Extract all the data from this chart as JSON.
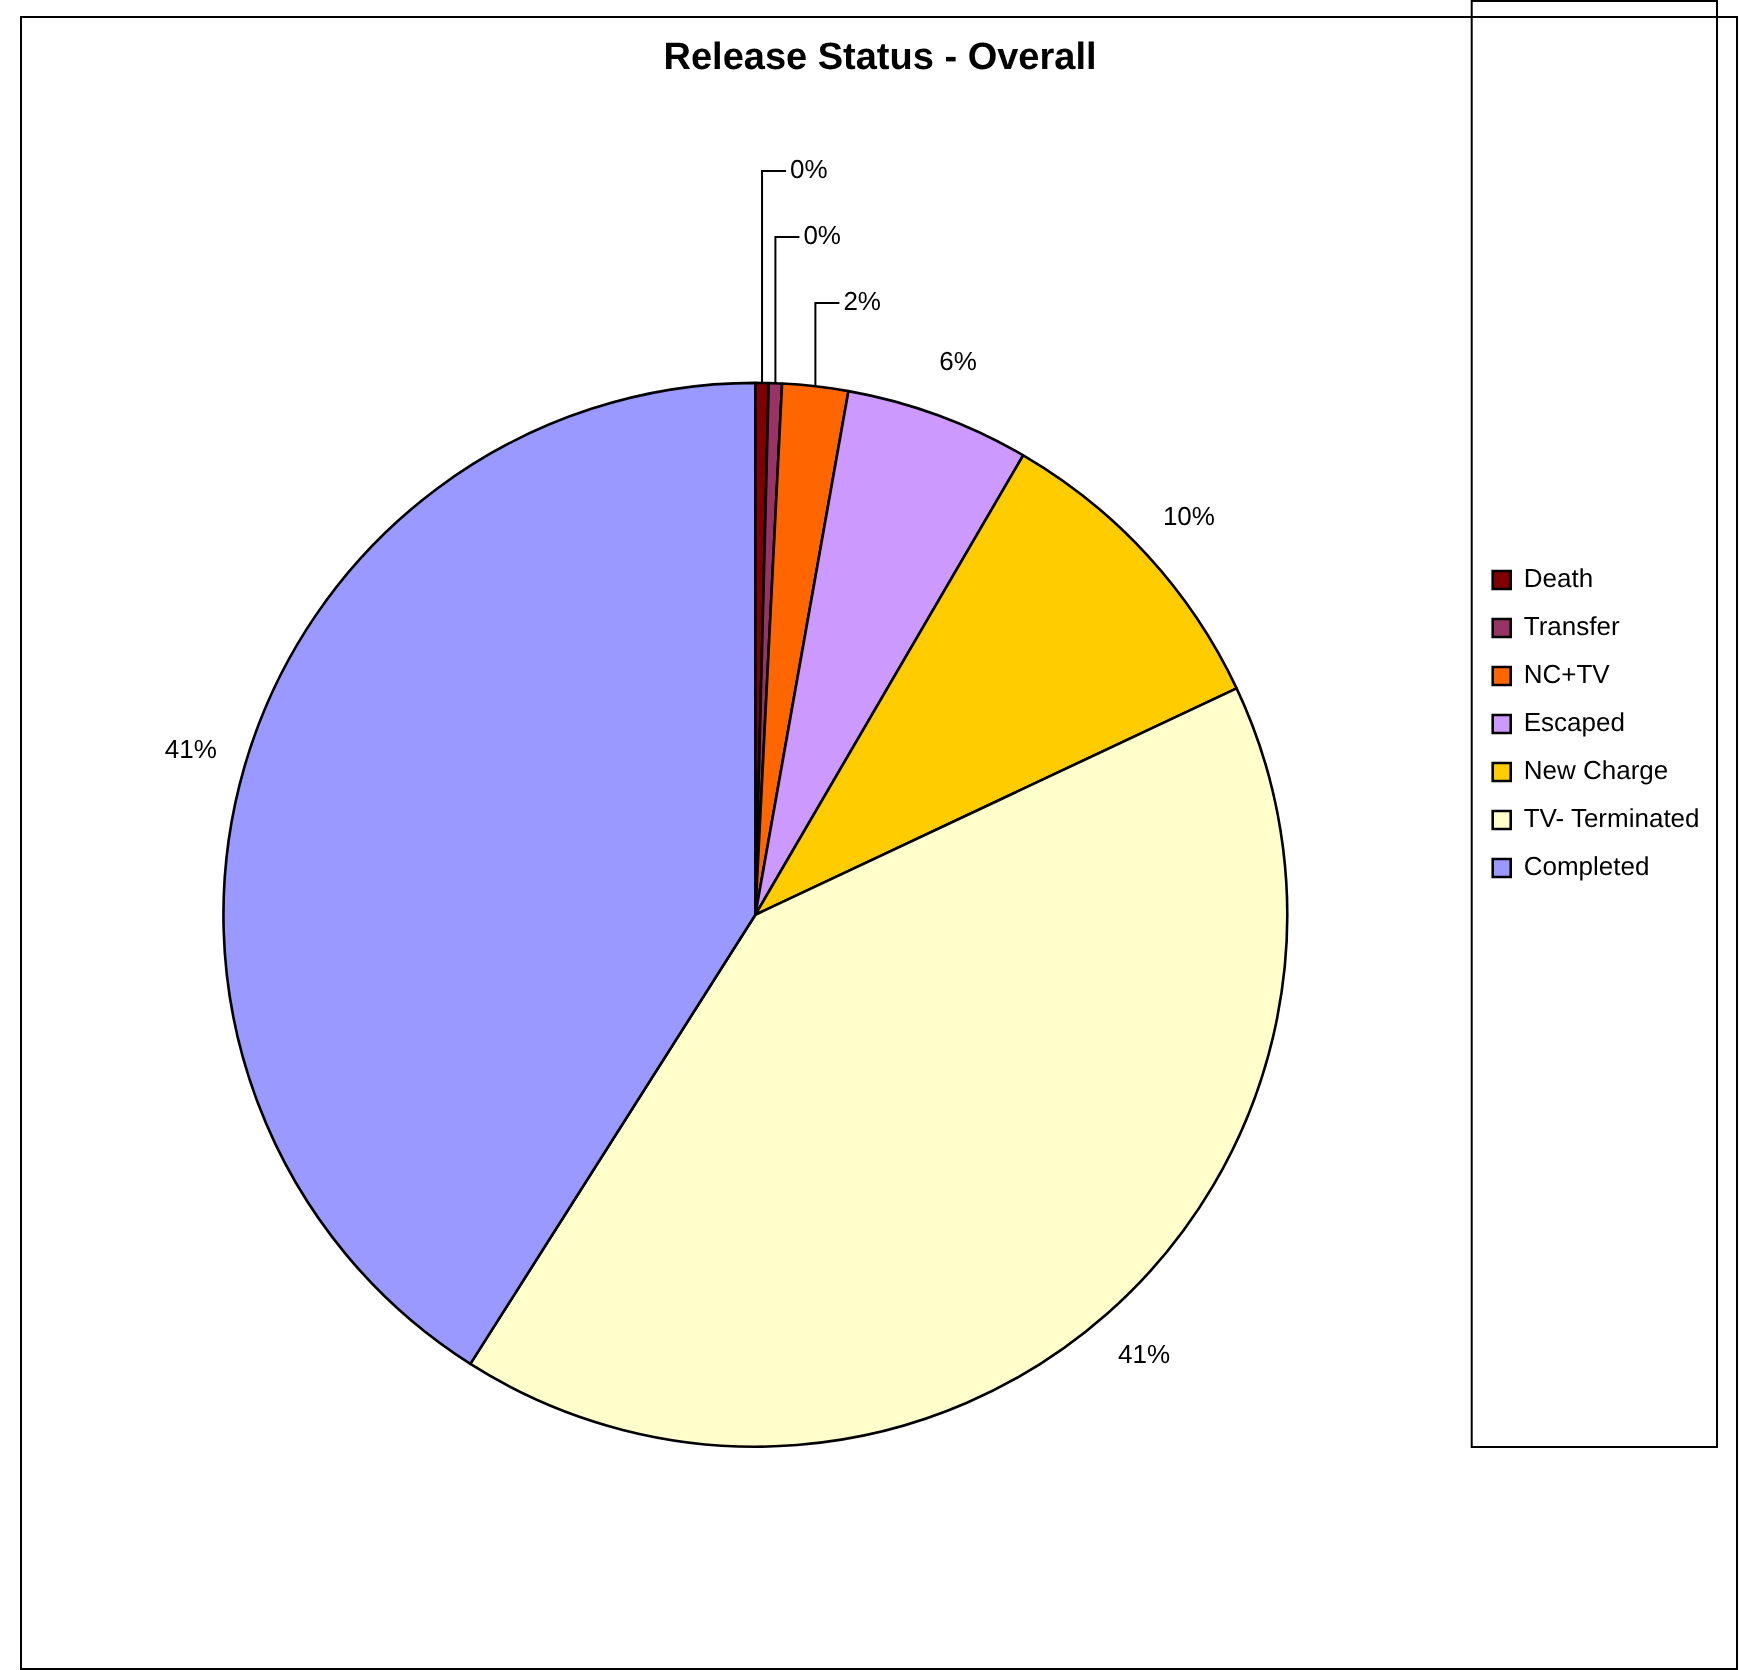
{
  "chart_data": {
    "type": "pie",
    "title": "Release Status - Overall",
    "categories": [
      "Death",
      "Transfer",
      "NC+TV",
      "Escaped",
      "New Charge",
      "TV- Terminated",
      "Completed"
    ],
    "values": [
      0.4,
      0.4,
      2,
      5.6,
      9.6,
      41,
      41
    ],
    "value_labels": [
      "0%",
      "0%",
      "2%",
      "6%",
      "10%",
      "41%",
      "41%"
    ],
    "colors": [
      "#800000",
      "#993366",
      "#ff6600",
      "#cc99ff",
      "#ffcc00",
      "#ffffcc",
      "#9999ff"
    ],
    "legend": "right"
  }
}
